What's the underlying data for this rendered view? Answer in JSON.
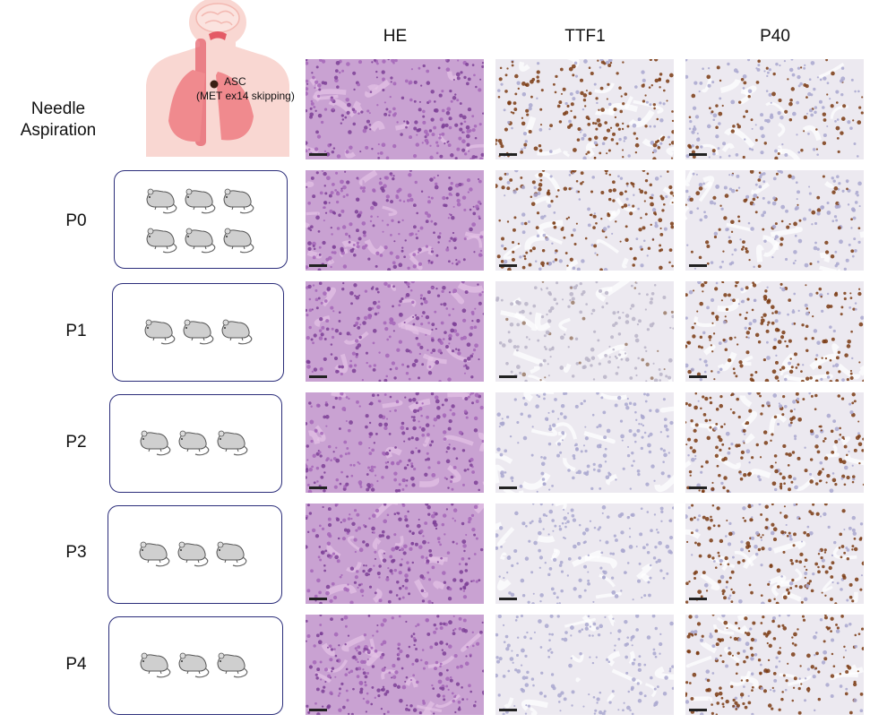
{
  "columns": [
    "HE",
    "TTF1",
    "P40"
  ],
  "rows": [
    {
      "label": "Needle\nAspiration",
      "mice": 0
    },
    {
      "label": "P0",
      "mice": 6
    },
    {
      "label": "P1",
      "mice": 3
    },
    {
      "label": "P2",
      "mice": 3
    },
    {
      "label": "P3",
      "mice": 3
    },
    {
      "label": "P4",
      "mice": 3
    }
  ],
  "annotation": {
    "line1": "ASC",
    "line2": "(MET ex14 skipping)"
  },
  "stains": {
    "HE": [
      "he",
      "he",
      "he",
      "he",
      "he",
      "he"
    ],
    "TTF1": [
      "pos",
      "pos",
      "weak",
      "neg",
      "neg",
      "neg"
    ],
    "P40": [
      "mixed",
      "mixed",
      "pos",
      "pos",
      "pos",
      "pos"
    ]
  },
  "colors": {
    "he_bg": "#c9a2d2",
    "he_dark": "#7d3f96",
    "ihc_bg": "#ece9f0",
    "brown": "#7a3a12",
    "blue_nuclei": "#a9a7cf",
    "box_border": "#2b2d7a",
    "body_pink": "#f9d7d2",
    "lung": "#f08a8e"
  }
}
